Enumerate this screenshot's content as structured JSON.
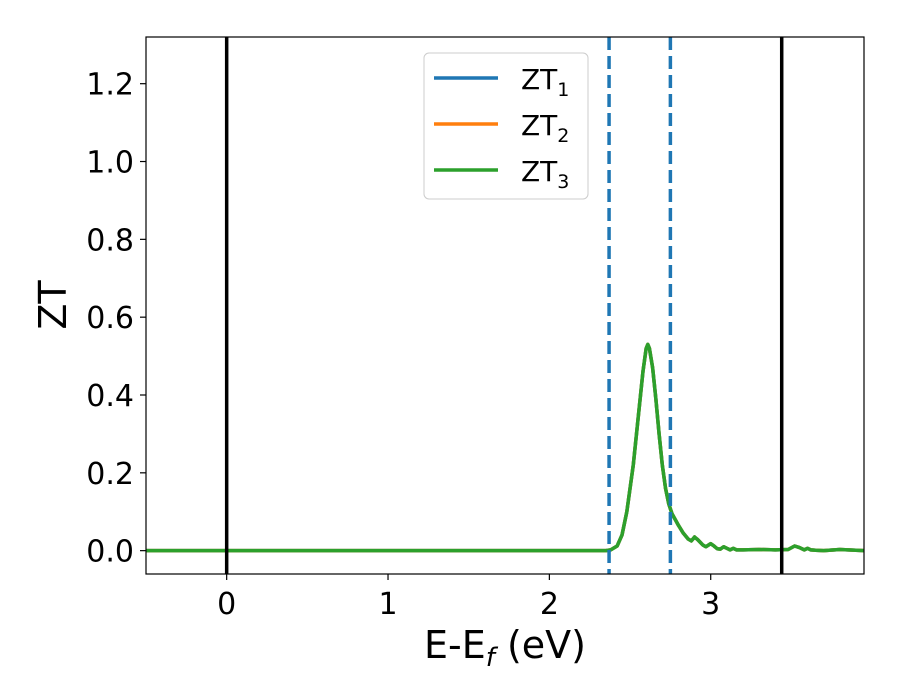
{
  "chart_data": {
    "type": "line",
    "xlabel_main": "E-E",
    "xlabel_sub": "f",
    "xlabel_tail": " (eV)",
    "ylabel": "ZT",
    "xlim": [
      -0.5,
      3.95
    ],
    "ylim": [
      -0.06,
      1.32
    ],
    "xticks": [
      0,
      1,
      2,
      3
    ],
    "yticks": [
      0.0,
      0.2,
      0.4,
      0.6,
      0.8,
      1.0,
      1.2
    ],
    "grid": false,
    "legend_placement": "top-center",
    "vlines_solid": [
      0.0,
      3.44
    ],
    "vlines_dashed": [
      2.37,
      2.75
    ],
    "colors": {
      "ZT1": "#1f77b4",
      "ZT2": "#ff7f0e",
      "ZT3": "#2ca02c",
      "vline_solid": "#000000",
      "vline_dashed": "#1f77b4"
    },
    "series": [
      {
        "name_main": "ZT",
        "name_sub": "1"
      },
      {
        "name_main": "ZT",
        "name_sub": "2"
      },
      {
        "name_main": "ZT",
        "name_sub": "3",
        "x": [
          -0.5,
          0.0,
          1.0,
          2.0,
          2.35,
          2.38,
          2.42,
          2.45,
          2.48,
          2.52,
          2.55,
          2.58,
          2.6,
          2.61,
          2.62,
          2.64,
          2.66,
          2.68,
          2.7,
          2.72,
          2.74,
          2.76,
          2.78,
          2.8,
          2.83,
          2.86,
          2.88,
          2.9,
          2.92,
          2.95,
          2.97,
          3.0,
          3.02,
          3.04,
          3.06,
          3.08,
          3.1,
          3.12,
          3.14,
          3.16,
          3.2,
          3.3,
          3.4,
          3.48,
          3.52,
          3.55,
          3.58,
          3.6,
          3.62,
          3.65,
          3.7,
          3.8,
          3.95
        ],
        "y": [
          0.0,
          0.0,
          0.0,
          0.0,
          0.0,
          0.002,
          0.012,
          0.04,
          0.1,
          0.22,
          0.34,
          0.46,
          0.52,
          0.53,
          0.52,
          0.47,
          0.39,
          0.3,
          0.22,
          0.16,
          0.12,
          0.095,
          0.08,
          0.065,
          0.045,
          0.03,
          0.025,
          0.035,
          0.028,
          0.015,
          0.01,
          0.018,
          0.012,
          0.005,
          0.004,
          0.01,
          0.006,
          0.002,
          0.006,
          0.002,
          0.002,
          0.003,
          0.002,
          0.003,
          0.012,
          0.008,
          0.002,
          0.006,
          0.002,
          0.001,
          0.0,
          0.003,
          0.0
        ]
      }
    ]
  }
}
